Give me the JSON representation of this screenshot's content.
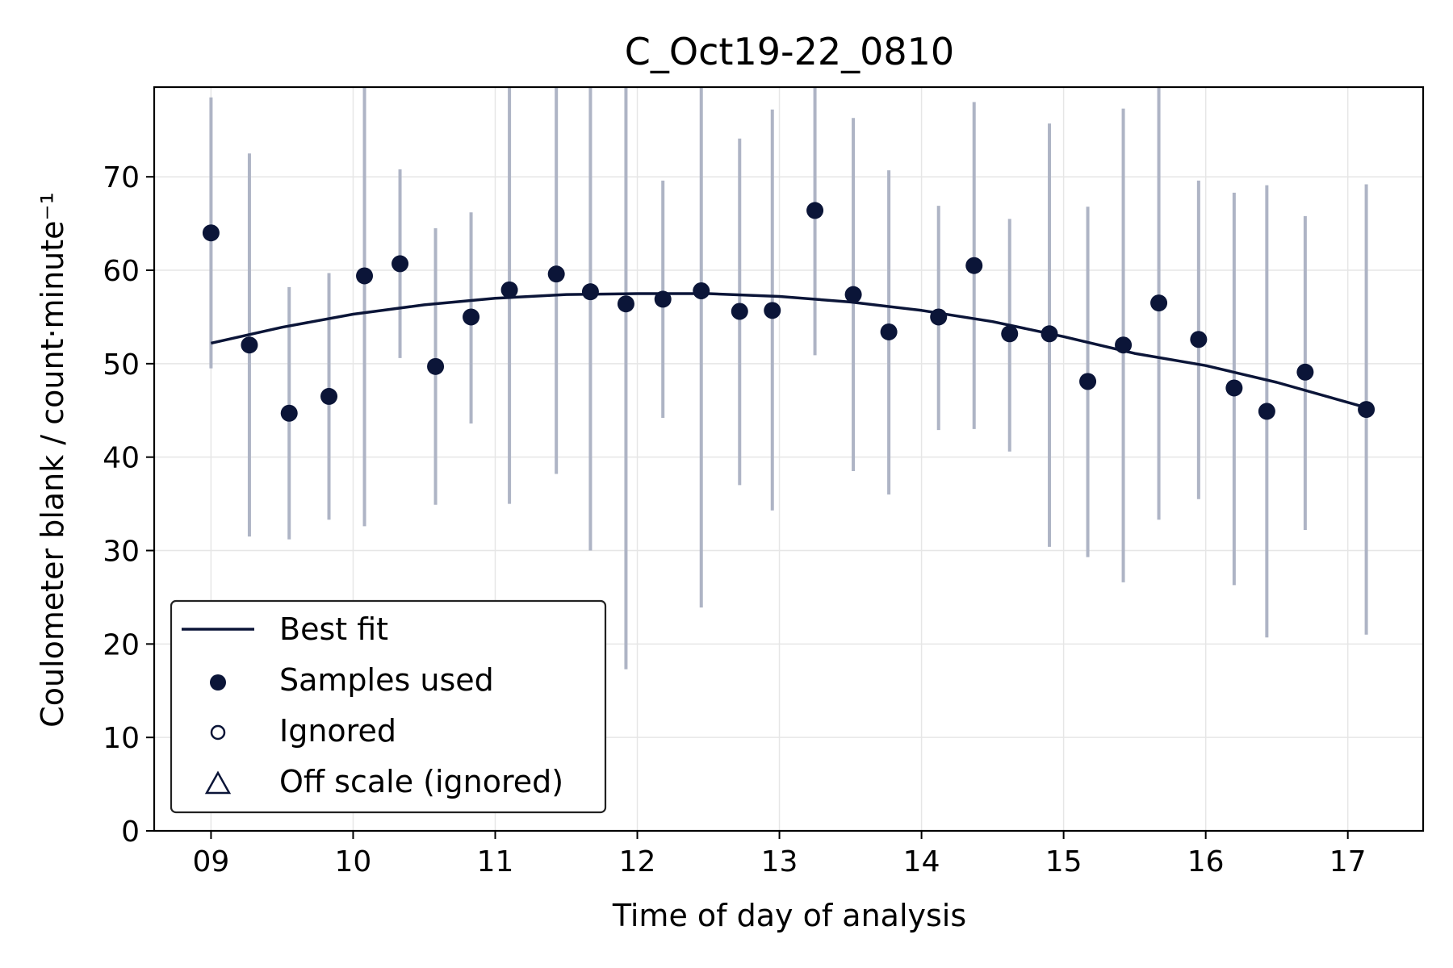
{
  "chart_data": {
    "type": "scatter",
    "title": "C_Oct19-22_0810",
    "xlabel": "Time of day of analysis",
    "ylabel": "Coulometer blank / count·minute⁻¹",
    "xlim": [
      8.6,
      17.53
    ],
    "ylim": [
      0,
      79.6
    ],
    "xticks": [
      9,
      10,
      11,
      12,
      13,
      14,
      15,
      16,
      17
    ],
    "xtick_labels": [
      "09",
      "10",
      "11",
      "12",
      "13",
      "14",
      "15",
      "16",
      "17"
    ],
    "yticks": [
      0,
      10,
      20,
      30,
      40,
      50,
      60,
      70
    ],
    "ytick_labels": [
      "0",
      "10",
      "20",
      "30",
      "40",
      "50",
      "60",
      "70"
    ],
    "grid": true,
    "legend_position": "lower-left",
    "legend": [
      {
        "label": "Best fit",
        "marker": "line"
      },
      {
        "label": "Samples used",
        "marker": "filled-circle"
      },
      {
        "label": "Ignored",
        "marker": "open-circle"
      },
      {
        "label": "Off scale (ignored)",
        "marker": "open-triangle"
      }
    ],
    "colors": {
      "marker": "#0b1538",
      "fit_line": "#0b1538",
      "error_bar": "#aeb4c5",
      "grid": "#e6e6e6"
    },
    "samples_used": [
      {
        "x": 9.0,
        "y": 64.0,
        "ylo": 49.5,
        "yhi": 78.5
      },
      {
        "x": 9.27,
        "y": 52.0,
        "ylo": 31.5,
        "yhi": 72.5
      },
      {
        "x": 9.55,
        "y": 44.7,
        "ylo": 31.2,
        "yhi": 58.2
      },
      {
        "x": 9.83,
        "y": 46.5,
        "ylo": 33.3,
        "yhi": 59.7
      },
      {
        "x": 10.08,
        "y": 59.4,
        "ylo": 32.6,
        "yhi": 79.6
      },
      {
        "x": 10.33,
        "y": 60.7,
        "ylo": 50.6,
        "yhi": 70.8
      },
      {
        "x": 10.58,
        "y": 49.7,
        "ylo": 34.9,
        "yhi": 64.5
      },
      {
        "x": 10.83,
        "y": 55.0,
        "ylo": 43.6,
        "yhi": 66.2
      },
      {
        "x": 11.1,
        "y": 57.9,
        "ylo": 35.0,
        "yhi": 79.6
      },
      {
        "x": 11.43,
        "y": 59.6,
        "ylo": 38.2,
        "yhi": 79.6
      },
      {
        "x": 11.67,
        "y": 57.7,
        "ylo": 30.0,
        "yhi": 79.6
      },
      {
        "x": 11.92,
        "y": 56.4,
        "ylo": 17.3,
        "yhi": 79.6
      },
      {
        "x": 12.18,
        "y": 56.9,
        "ylo": 44.2,
        "yhi": 69.6
      },
      {
        "x": 12.45,
        "y": 57.8,
        "ylo": 23.9,
        "yhi": 79.6
      },
      {
        "x": 12.72,
        "y": 55.6,
        "ylo": 37.0,
        "yhi": 74.1
      },
      {
        "x": 12.95,
        "y": 55.7,
        "ylo": 34.3,
        "yhi": 77.2
      },
      {
        "x": 13.25,
        "y": 66.4,
        "ylo": 50.9,
        "yhi": 79.6
      },
      {
        "x": 13.52,
        "y": 57.4,
        "ylo": 38.5,
        "yhi": 76.3
      },
      {
        "x": 13.77,
        "y": 53.4,
        "ylo": 36.0,
        "yhi": 70.7
      },
      {
        "x": 14.12,
        "y": 55.0,
        "ylo": 42.9,
        "yhi": 66.9
      },
      {
        "x": 14.37,
        "y": 60.5,
        "ylo": 43.0,
        "yhi": 78.0
      },
      {
        "x": 14.62,
        "y": 53.2,
        "ylo": 40.6,
        "yhi": 65.5
      },
      {
        "x": 14.9,
        "y": 53.2,
        "ylo": 30.4,
        "yhi": 75.7
      },
      {
        "x": 15.17,
        "y": 48.1,
        "ylo": 29.3,
        "yhi": 66.8
      },
      {
        "x": 15.42,
        "y": 52.0,
        "ylo": 26.6,
        "yhi": 77.3
      },
      {
        "x": 15.67,
        "y": 56.5,
        "ylo": 33.3,
        "yhi": 79.6
      },
      {
        "x": 15.95,
        "y": 52.6,
        "ylo": 35.5,
        "yhi": 69.6
      },
      {
        "x": 16.2,
        "y": 47.4,
        "ylo": 26.3,
        "yhi": 68.3
      },
      {
        "x": 16.43,
        "y": 44.9,
        "ylo": 20.7,
        "yhi": 69.1
      },
      {
        "x": 16.7,
        "y": 49.1,
        "ylo": 32.2,
        "yhi": 65.8
      },
      {
        "x": 17.13,
        "y": 45.1,
        "ylo": 21.0,
        "yhi": 69.2
      }
    ],
    "best_fit": {
      "x": [
        9.0,
        9.5,
        10.0,
        10.5,
        11.0,
        11.5,
        12.0,
        12.5,
        13.0,
        13.5,
        14.0,
        14.5,
        15.0,
        15.5,
        16.0,
        16.5,
        17.13
      ],
      "y": [
        52.2,
        53.9,
        55.3,
        56.3,
        57.0,
        57.4,
        57.5,
        57.5,
        57.2,
        56.6,
        55.7,
        54.5,
        52.9,
        51.1,
        49.8,
        48.0,
        45.3
      ]
    }
  }
}
